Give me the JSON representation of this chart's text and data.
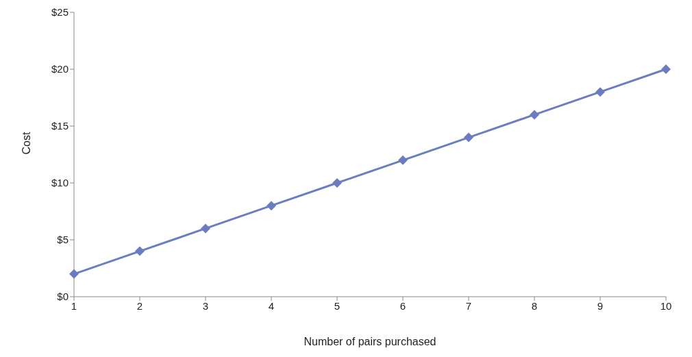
{
  "chart_data": {
    "type": "line",
    "xlabel": "Number of pairs purchased",
    "ylabel": "Cost",
    "categories": [
      "1",
      "2",
      "3",
      "4",
      "5",
      "6",
      "7",
      "8",
      "9",
      "10"
    ],
    "values": [
      2,
      4,
      6,
      8,
      10,
      12,
      14,
      16,
      18,
      20
    ],
    "color": "#6a7dc0",
    "ylim": [
      0,
      25
    ],
    "yticks": [
      {
        "value": 0,
        "label": "$0"
      },
      {
        "value": 5,
        "label": "$5"
      },
      {
        "value": 10,
        "label": "$10"
      },
      {
        "value": 15,
        "label": "$15"
      },
      {
        "value": 20,
        "label": "$20"
      },
      {
        "value": 25,
        "label": "$25"
      }
    ],
    "grid": false,
    "legend": false,
    "marker": "diamond",
    "line_style": "solid"
  }
}
